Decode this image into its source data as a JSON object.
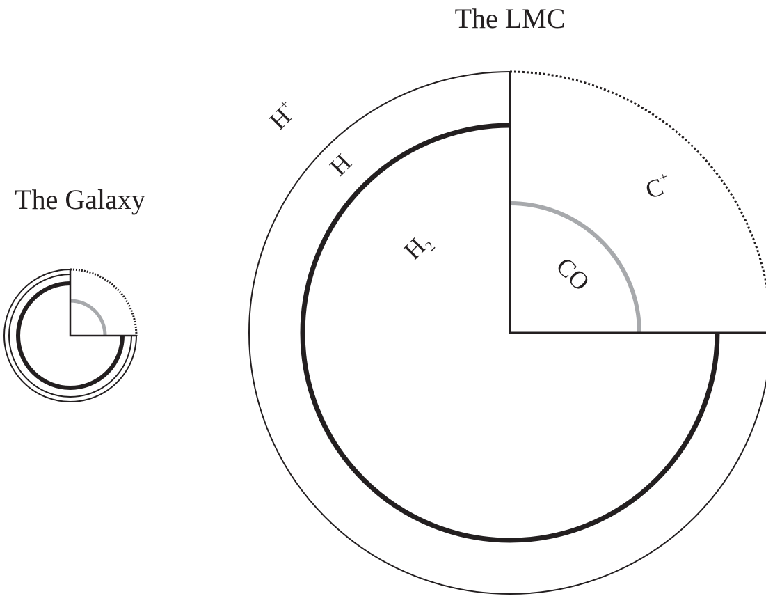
{
  "titles": {
    "lmc": "The LMC",
    "galaxy": "The Galaxy"
  },
  "labels": [
    {
      "text": "H",
      "sup": "+"
    },
    {
      "text": "H"
    },
    {
      "text": "H",
      "sub": "2"
    },
    {
      "text": "C",
      "sup": "+"
    },
    {
      "text": "CO"
    }
  ]
}
